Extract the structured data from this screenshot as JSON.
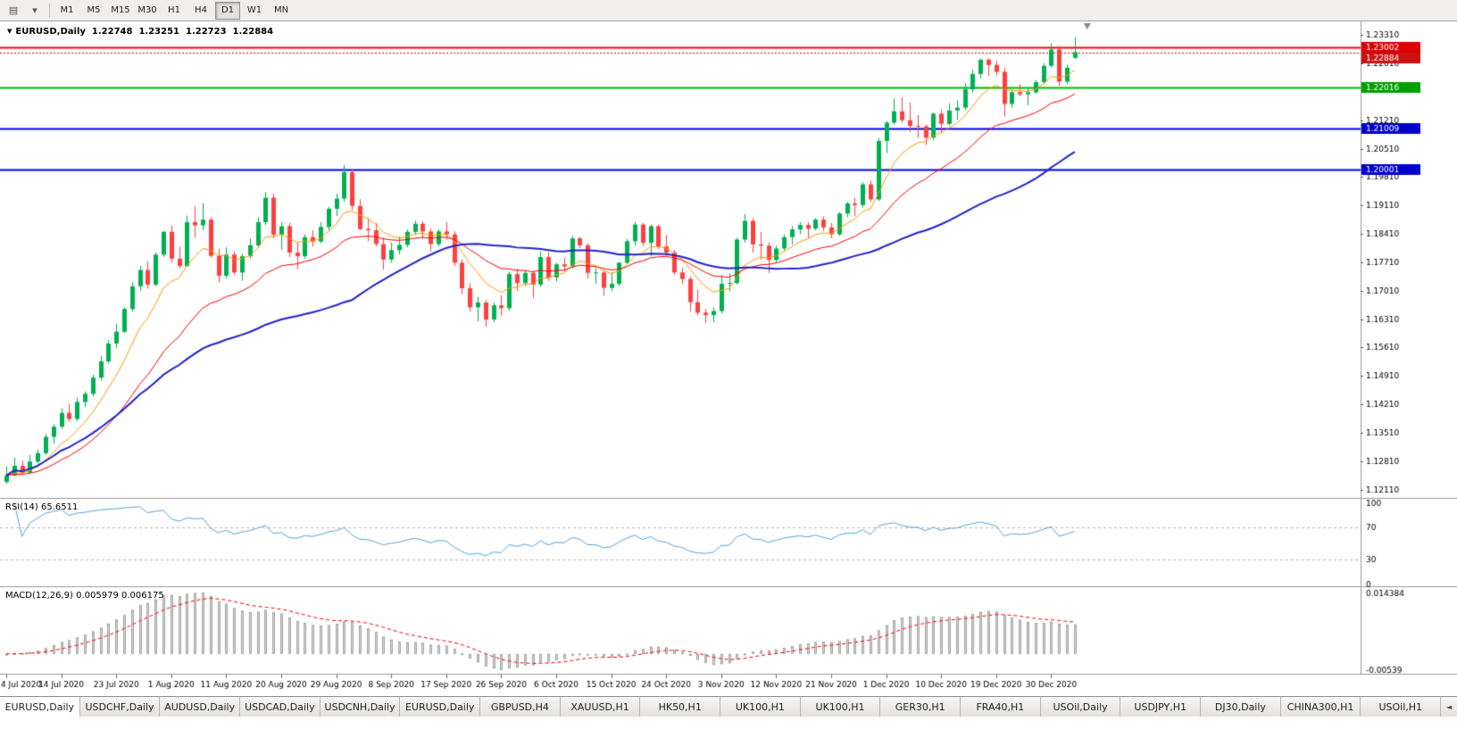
{
  "toolbar": {
    "charts_icon_glyph": "▤",
    "dropdown_icon_glyph": "▾",
    "timeframes": [
      {
        "label": "M1",
        "active": false
      },
      {
        "label": "M5",
        "active": false
      },
      {
        "label": "M15",
        "active": false
      },
      {
        "label": "M30",
        "active": false
      },
      {
        "label": "H1",
        "active": false
      },
      {
        "label": "H4",
        "active": false
      },
      {
        "label": "D1",
        "active": true
      },
      {
        "label": "W1",
        "active": false
      },
      {
        "label": "MN",
        "active": false
      }
    ]
  },
  "chart": {
    "header": {
      "menu_glyph": "▼",
      "title": "EURUSD,Daily",
      "open": "1.22748",
      "high": "1.23251",
      "low": "1.22723",
      "close": "1.22884"
    }
  },
  "chart_data": {
    "type": "candlestick",
    "symbol": "EURUSD",
    "period": "Daily",
    "colors": {
      "bg": "#ffffff",
      "up": "#00b050",
      "down": "#ff4040",
      "axis_text": "#000000",
      "separator": "#9a9a9a"
    },
    "price_axis": {
      "top_price": 1.236,
      "bottom_price": 1.1195,
      "ticks": [
        "1.23310",
        "1.22610",
        "1.21910",
        "1.21210",
        "1.20510",
        "1.19810",
        "1.19110",
        "1.18410",
        "1.17710",
        "1.17010",
        "1.16310",
        "1.15610",
        "1.14910",
        "1.14210",
        "1.13510",
        "1.12810",
        "1.12110"
      ]
    },
    "x_labels": {
      "every": 7,
      "labels": [
        "4 Jul 2020",
        "14 Jul 2020",
        "23 Jul 2020",
        "1 Aug 2020",
        "11 Aug 2020",
        "20 Aug 2020",
        "29 Aug 2020",
        "8 Sep 2020",
        "17 Sep 2020",
        "26 Sep 2020",
        "6 Oct 2020",
        "15 Oct 2020",
        "24 Oct 2020",
        "3 Nov 2020",
        "12 Nov 2020",
        "21 Nov 2020",
        "1 Dec 2020",
        "10 Dec 2020",
        "19 Dec 2020",
        "30 Dec 2020"
      ]
    },
    "candles": [
      [
        1.123,
        1.1268,
        1.1225,
        1.1246
      ],
      [
        1.1246,
        1.129,
        1.1244,
        1.127
      ],
      [
        1.127,
        1.1282,
        1.1248,
        1.1253
      ],
      [
        1.1253,
        1.1296,
        1.1251,
        1.128
      ],
      [
        1.128,
        1.131,
        1.1276,
        1.1301
      ],
      [
        1.1301,
        1.1348,
        1.1296,
        1.1341
      ],
      [
        1.1341,
        1.1372,
        1.1324,
        1.1366
      ],
      [
        1.1366,
        1.1412,
        1.136,
        1.14
      ],
      [
        1.14,
        1.1422,
        1.1378,
        1.1385
      ],
      [
        1.1385,
        1.1438,
        1.138,
        1.1427
      ],
      [
        1.1427,
        1.1453,
        1.1414,
        1.1447
      ],
      [
        1.1447,
        1.1495,
        1.1441,
        1.1487
      ],
      [
        1.1487,
        1.154,
        1.148,
        1.1527
      ],
      [
        1.1527,
        1.158,
        1.1521,
        1.1571
      ],
      [
        1.1571,
        1.162,
        1.156,
        1.16
      ],
      [
        1.16,
        1.166,
        1.1597,
        1.1656
      ],
      [
        1.1656,
        1.1722,
        1.165,
        1.1712
      ],
      [
        1.1712,
        1.1762,
        1.17,
        1.1752
      ],
      [
        1.1752,
        1.1773,
        1.1706,
        1.1716
      ],
      [
        1.1716,
        1.1795,
        1.1712,
        1.179
      ],
      [
        1.179,
        1.1848,
        1.1784,
        1.1846
      ],
      [
        1.1846,
        1.1862,
        1.177,
        1.178
      ],
      [
        1.178,
        1.181,
        1.1756,
        1.1762
      ],
      [
        1.1762,
        1.1886,
        1.176,
        1.187
      ],
      [
        1.187,
        1.1909,
        1.1832,
        1.1862
      ],
      [
        1.1862,
        1.1916,
        1.185,
        1.1876
      ],
      [
        1.1876,
        1.1882,
        1.1782,
        1.1787
      ],
      [
        1.1787,
        1.1805,
        1.1722,
        1.1738
      ],
      [
        1.1738,
        1.1808,
        1.173,
        1.179
      ],
      [
        1.179,
        1.1798,
        1.174,
        1.1746
      ],
      [
        1.1746,
        1.1792,
        1.1726,
        1.1786
      ],
      [
        1.1786,
        1.183,
        1.178,
        1.1813
      ],
      [
        1.1813,
        1.1882,
        1.1808,
        1.187
      ],
      [
        1.187,
        1.1944,
        1.1863,
        1.193
      ],
      [
        1.193,
        1.194,
        1.183,
        1.1839
      ],
      [
        1.1839,
        1.187,
        1.1802,
        1.186
      ],
      [
        1.186,
        1.1868,
        1.1784,
        1.1795
      ],
      [
        1.1795,
        1.182,
        1.1754,
        1.1786
      ],
      [
        1.1786,
        1.184,
        1.178,
        1.1833
      ],
      [
        1.1833,
        1.185,
        1.181,
        1.1822
      ],
      [
        1.1822,
        1.187,
        1.1818,
        1.1858
      ],
      [
        1.1858,
        1.1908,
        1.185,
        1.1903
      ],
      [
        1.1903,
        1.194,
        1.1885,
        1.1928
      ],
      [
        1.1928,
        1.2011,
        1.192,
        1.1993
      ],
      [
        1.1993,
        1.2,
        1.19,
        1.191
      ],
      [
        1.191,
        1.1927,
        1.185,
        1.1853
      ],
      [
        1.1853,
        1.188,
        1.1823,
        1.185
      ],
      [
        1.185,
        1.1868,
        1.181,
        1.1816
      ],
      [
        1.1816,
        1.1832,
        1.1753,
        1.1778
      ],
      [
        1.1778,
        1.182,
        1.177,
        1.1801
      ],
      [
        1.1801,
        1.1834,
        1.179,
        1.1814
      ],
      [
        1.1814,
        1.1852,
        1.1808,
        1.1846
      ],
      [
        1.1846,
        1.1874,
        1.1838,
        1.1866
      ],
      [
        1.1866,
        1.1872,
        1.183,
        1.1847
      ],
      [
        1.1847,
        1.1854,
        1.1798,
        1.1816
      ],
      [
        1.1816,
        1.1852,
        1.181,
        1.1847
      ],
      [
        1.1847,
        1.187,
        1.1826,
        1.184
      ],
      [
        1.184,
        1.1848,
        1.1762,
        1.177
      ],
      [
        1.177,
        1.1778,
        1.1692,
        1.1707
      ],
      [
        1.1707,
        1.172,
        1.165,
        1.166
      ],
      [
        1.166,
        1.1686,
        1.1626,
        1.1672
      ],
      [
        1.1672,
        1.1678,
        1.1612,
        1.163
      ],
      [
        1.163,
        1.1672,
        1.1624,
        1.1665
      ],
      [
        1.1665,
        1.169,
        1.164,
        1.1658
      ],
      [
        1.1658,
        1.1748,
        1.1652,
        1.1742
      ],
      [
        1.1742,
        1.1755,
        1.17,
        1.172
      ],
      [
        1.172,
        1.1752,
        1.1712,
        1.1745
      ],
      [
        1.1745,
        1.175,
        1.1684,
        1.1716
      ],
      [
        1.1716,
        1.1798,
        1.171,
        1.1784
      ],
      [
        1.1784,
        1.1796,
        1.1725,
        1.1734
      ],
      [
        1.1734,
        1.177,
        1.1724,
        1.1766
      ],
      [
        1.1766,
        1.1782,
        1.1748,
        1.1761
      ],
      [
        1.1761,
        1.1836,
        1.1756,
        1.183
      ],
      [
        1.183,
        1.1834,
        1.1806,
        1.1813
      ],
      [
        1.1813,
        1.1818,
        1.1731,
        1.1745
      ],
      [
        1.1745,
        1.1758,
        1.1718,
        1.1746
      ],
      [
        1.1746,
        1.175,
        1.1688,
        1.1708
      ],
      [
        1.1708,
        1.1747,
        1.17,
        1.1718
      ],
      [
        1.1718,
        1.1772,
        1.1712,
        1.177
      ],
      [
        1.177,
        1.1828,
        1.1766,
        1.1823
      ],
      [
        1.1823,
        1.187,
        1.1812,
        1.1864
      ],
      [
        1.1864,
        1.1868,
        1.1811,
        1.1819
      ],
      [
        1.1819,
        1.1864,
        1.1786,
        1.186
      ],
      [
        1.186,
        1.1864,
        1.1804,
        1.181
      ],
      [
        1.181,
        1.1838,
        1.1786,
        1.1795
      ],
      [
        1.1795,
        1.1802,
        1.174,
        1.1746
      ],
      [
        1.1746,
        1.1758,
        1.1718,
        1.173
      ],
      [
        1.173,
        1.1736,
        1.165,
        1.1673
      ],
      [
        1.1673,
        1.1704,
        1.164,
        1.1647
      ],
      [
        1.1647,
        1.1656,
        1.1621,
        1.1641
      ],
      [
        1.1641,
        1.166,
        1.1623,
        1.1651
      ],
      [
        1.1651,
        1.174,
        1.1645,
        1.1718
      ],
      [
        1.1718,
        1.1744,
        1.17,
        1.172
      ],
      [
        1.172,
        1.1832,
        1.1716,
        1.1827
      ],
      [
        1.1827,
        1.189,
        1.182,
        1.1873
      ],
      [
        1.1873,
        1.188,
        1.1795,
        1.1815
      ],
      [
        1.1815,
        1.1846,
        1.1778,
        1.1812
      ],
      [
        1.1812,
        1.182,
        1.1745,
        1.1777
      ],
      [
        1.1777,
        1.1812,
        1.177,
        1.1805
      ],
      [
        1.1805,
        1.184,
        1.18,
        1.1833
      ],
      [
        1.1833,
        1.186,
        1.1815,
        1.1852
      ],
      [
        1.1852,
        1.187,
        1.184,
        1.1863
      ],
      [
        1.1863,
        1.187,
        1.183,
        1.1854
      ],
      [
        1.1854,
        1.188,
        1.185,
        1.1876
      ],
      [
        1.1876,
        1.1884,
        1.1848,
        1.1857
      ],
      [
        1.1857,
        1.1868,
        1.183,
        1.184
      ],
      [
        1.184,
        1.1895,
        1.1836,
        1.1891
      ],
      [
        1.1891,
        1.192,
        1.1882,
        1.1916
      ],
      [
        1.1916,
        1.193,
        1.1884,
        1.1912
      ],
      [
        1.1912,
        1.1968,
        1.1906,
        1.1963
      ],
      [
        1.1963,
        1.1972,
        1.192,
        1.1926
      ],
      [
        1.1926,
        1.2077,
        1.1922,
        1.207
      ],
      [
        1.207,
        1.2119,
        1.204,
        1.2115
      ],
      [
        1.2115,
        1.2175,
        1.211,
        1.2143
      ],
      [
        1.2143,
        1.2178,
        1.2115,
        1.2121
      ],
      [
        1.2121,
        1.2165,
        1.2092,
        1.2107
      ],
      [
        1.2107,
        1.2134,
        1.2078,
        1.2106
      ],
      [
        1.2106,
        1.211,
        1.206,
        1.2078
      ],
      [
        1.2078,
        1.214,
        1.2072,
        1.2137
      ],
      [
        1.2137,
        1.2148,
        1.209,
        1.2112
      ],
      [
        1.2112,
        1.2163,
        1.2108,
        1.2145
      ],
      [
        1.2145,
        1.217,
        1.2122,
        1.2152
      ],
      [
        1.2152,
        1.2212,
        1.2146,
        1.2197
      ],
      [
        1.2197,
        1.2245,
        1.219,
        1.2235
      ],
      [
        1.2235,
        1.2273,
        1.2225,
        1.227
      ],
      [
        1.227,
        1.2274,
        1.223,
        1.2257
      ],
      [
        1.2257,
        1.2268,
        1.2232,
        1.224
      ],
      [
        1.224,
        1.225,
        1.213,
        1.2161
      ],
      [
        1.2161,
        1.2196,
        1.2152,
        1.219
      ],
      [
        1.219,
        1.221,
        1.218,
        1.2185
      ],
      [
        1.2185,
        1.2202,
        1.2158,
        1.219
      ],
      [
        1.219,
        1.222,
        1.2186,
        1.2215
      ],
      [
        1.2215,
        1.2262,
        1.221,
        1.2255
      ],
      [
        1.2255,
        1.231,
        1.225,
        1.2295
      ],
      [
        1.2295,
        1.2304,
        1.2206,
        1.2216
      ],
      [
        1.2216,
        1.2258,
        1.221,
        1.225
      ],
      [
        1.22748,
        1.23251,
        1.22723,
        1.22884
      ]
    ],
    "overlays": [
      {
        "name": "ma-fast",
        "type": "ema",
        "period": 8,
        "color": "#ff9900",
        "width": 1
      },
      {
        "name": "ma-mid",
        "type": "ema",
        "period": 21,
        "color": "#ff0000",
        "width": 1
      },
      {
        "name": "ma-slow",
        "type": "sma",
        "period": 45,
        "color": "#2222cc",
        "width": 2
      }
    ],
    "hlines": [
      {
        "price": 1.23002,
        "label": "1.23002",
        "color": "#ff0000",
        "width": 2,
        "style": "solid",
        "badge_color": "#dd0000"
      },
      {
        "price": 1.22884,
        "label": "1.22884",
        "color": "#dd0000",
        "width": 1,
        "style": "dot",
        "badge_color": "#cc1111"
      },
      {
        "price": 1.22016,
        "label": "1.22016",
        "color": "#00bb00",
        "width": 2,
        "style": "solid",
        "badge_color": "#00a000"
      },
      {
        "price": 1.21009,
        "label": "1.21009",
        "color": "#0000ee",
        "width": 2,
        "style": "solid",
        "badge_color": "#0000cc"
      },
      {
        "price": 1.20001,
        "label": "1.20001",
        "color": "#0000ee",
        "width": 2,
        "style": "solid",
        "badge_color": "#0000cc"
      }
    ],
    "indicators": {
      "rsi": {
        "label": "RSI(14) 65.6511",
        "period": 14,
        "levels": [
          70,
          30
        ],
        "axis_labels": [
          "100",
          "70",
          "30",
          "0"
        ],
        "color": "#55a5dd"
      },
      "macd": {
        "label": "MACD(12,26,9) 0.005979 0.006175",
        "fast": 12,
        "slow": 26,
        "signal_period": 9,
        "axis_labels": [
          "0.014384",
          "-0.00539"
        ],
        "hist_color": "#d6d6d6",
        "hist_border": "#8f8f8f",
        "signal_color": "#ff0000"
      }
    }
  },
  "tabs": {
    "scroll_left_glyph": "◄",
    "items": [
      {
        "label": "EURUSD,Daily",
        "active": true
      },
      {
        "label": "USDCHF,Daily",
        "active": false
      },
      {
        "label": "AUDUSD,Daily",
        "active": false
      },
      {
        "label": "USDCAD,Daily",
        "active": false
      },
      {
        "label": "USDCNH,Daily",
        "active": false
      },
      {
        "label": "EURUSD,Daily",
        "active": false
      },
      {
        "label": "GBPUSD,H4",
        "active": false
      },
      {
        "label": "XAUUSD,H1",
        "active": false
      },
      {
        "label": "HK50,H1",
        "active": false
      },
      {
        "label": "UK100,H1",
        "active": false
      },
      {
        "label": "UK100,H1",
        "active": false
      },
      {
        "label": "GER30,H1",
        "active": false
      },
      {
        "label": "FRA40,H1",
        "active": false
      },
      {
        "label": "USOil,Daily",
        "active": false
      },
      {
        "label": "USDJPY,H1",
        "active": false
      },
      {
        "label": "DJ30,Daily",
        "active": false
      },
      {
        "label": "CHINA300,H1",
        "active": false
      },
      {
        "label": "USOil,H1",
        "active": false
      }
    ]
  }
}
